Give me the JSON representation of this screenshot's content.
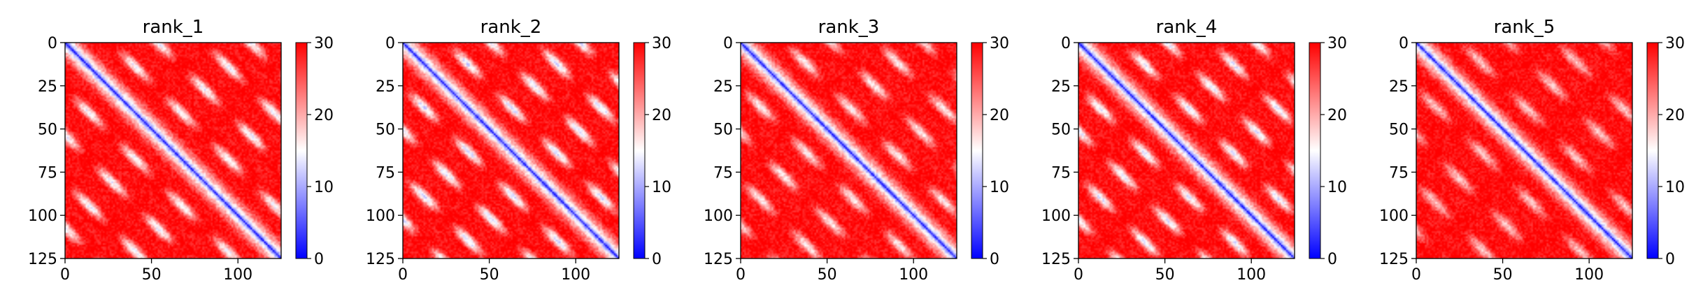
{
  "chart_data": {
    "type": "heatmap",
    "colormap": "bwr",
    "colormap_colors": {
      "low": "#0000ff",
      "mid": "#ffffff",
      "high": "#ff0000"
    },
    "matrix_size": 126,
    "value_range": [
      0,
      30
    ],
    "colorbar_ticks": [
      0,
      10,
      20,
      30
    ],
    "x_ticks": [
      0,
      50,
      100
    ],
    "y_ticks": [
      0,
      25,
      50,
      75,
      100,
      125
    ],
    "xlim": [
      0,
      125
    ],
    "ylim": [
      125,
      0
    ],
    "grid": false,
    "pattern_summary": "symmetric distance-like matrix: low (blue) along the main diagonal and in periodic off-diagonal blobs every ~27 residues; high (red) elsewhere",
    "panels": [
      {
        "title": "rank_1",
        "diag_period": 27,
        "diag_phase": 0.0,
        "blob_strength": 1.0
      },
      {
        "title": "rank_2",
        "diag_period": 26,
        "diag_phase": 0.6,
        "blob_strength": 1.1
      },
      {
        "title": "rank_3",
        "diag_period": 27,
        "diag_phase": 1.2,
        "blob_strength": 0.9
      },
      {
        "title": "rank_4",
        "diag_period": 26,
        "diag_phase": 0.3,
        "blob_strength": 1.05
      },
      {
        "title": "rank_5",
        "diag_period": 28,
        "diag_phase": 1.8,
        "blob_strength": 0.75
      }
    ]
  }
}
